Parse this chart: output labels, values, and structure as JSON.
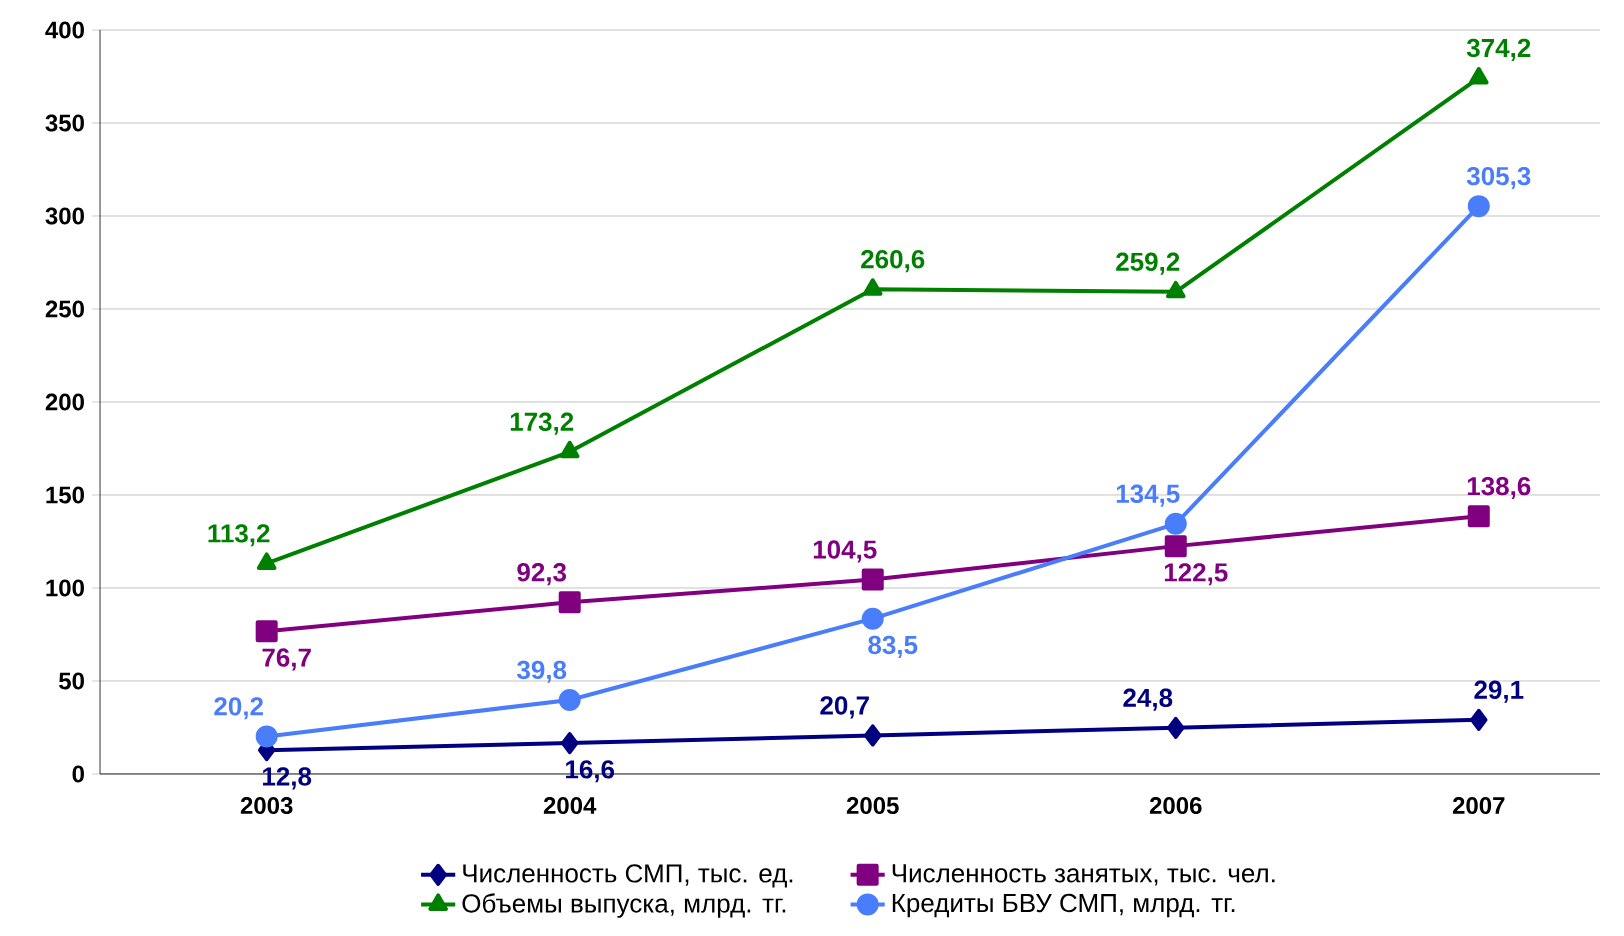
{
  "chart_data": {
    "type": "line",
    "categories": [
      "2003",
      "2004",
      "2005",
      "2006",
      "2007"
    ],
    "ylim": [
      0,
      400
    ],
    "yticks": [
      0,
      50,
      100,
      150,
      200,
      250,
      300,
      350,
      400
    ],
    "grid": "y",
    "legend": "bottom",
    "series": [
      {
        "name": "Численность СМП, тыс. ед.",
        "color": "#000080",
        "marker": "diamond",
        "values": [
          12.8,
          16.6,
          20.7,
          24.8,
          29.1
        ],
        "value_labels": [
          "12,8",
          "16,6",
          "20,7",
          "24,8",
          "29,1"
        ]
      },
      {
        "name": "Численность занятых, тыс. чел.",
        "color": "#800080",
        "marker": "square",
        "values": [
          76.7,
          92.3,
          104.5,
          122.5,
          138.6
        ],
        "value_labels": [
          "76,7",
          "92,3",
          "104,5",
          "122,5",
          "138,6"
        ]
      },
      {
        "name": "Объемы выпуска, млрд. тг.",
        "color": "#008000",
        "marker": "triangle",
        "values": [
          113.2,
          173.2,
          260.6,
          259.2,
          374.2
        ],
        "value_labels": [
          "113,2",
          "173,2",
          "260,6",
          "259,2",
          "374,2"
        ]
      },
      {
        "name": "Кредиты БВУ СМП, млрд. тг.",
        "color": "#4a7dfa",
        "marker": "circle",
        "values": [
          20.2,
          39.8,
          83.5,
          134.5,
          305.3
        ],
        "value_labels": [
          "20,2",
          "39,8",
          "83,5",
          "134,5",
          "305,3"
        ]
      }
    ]
  }
}
